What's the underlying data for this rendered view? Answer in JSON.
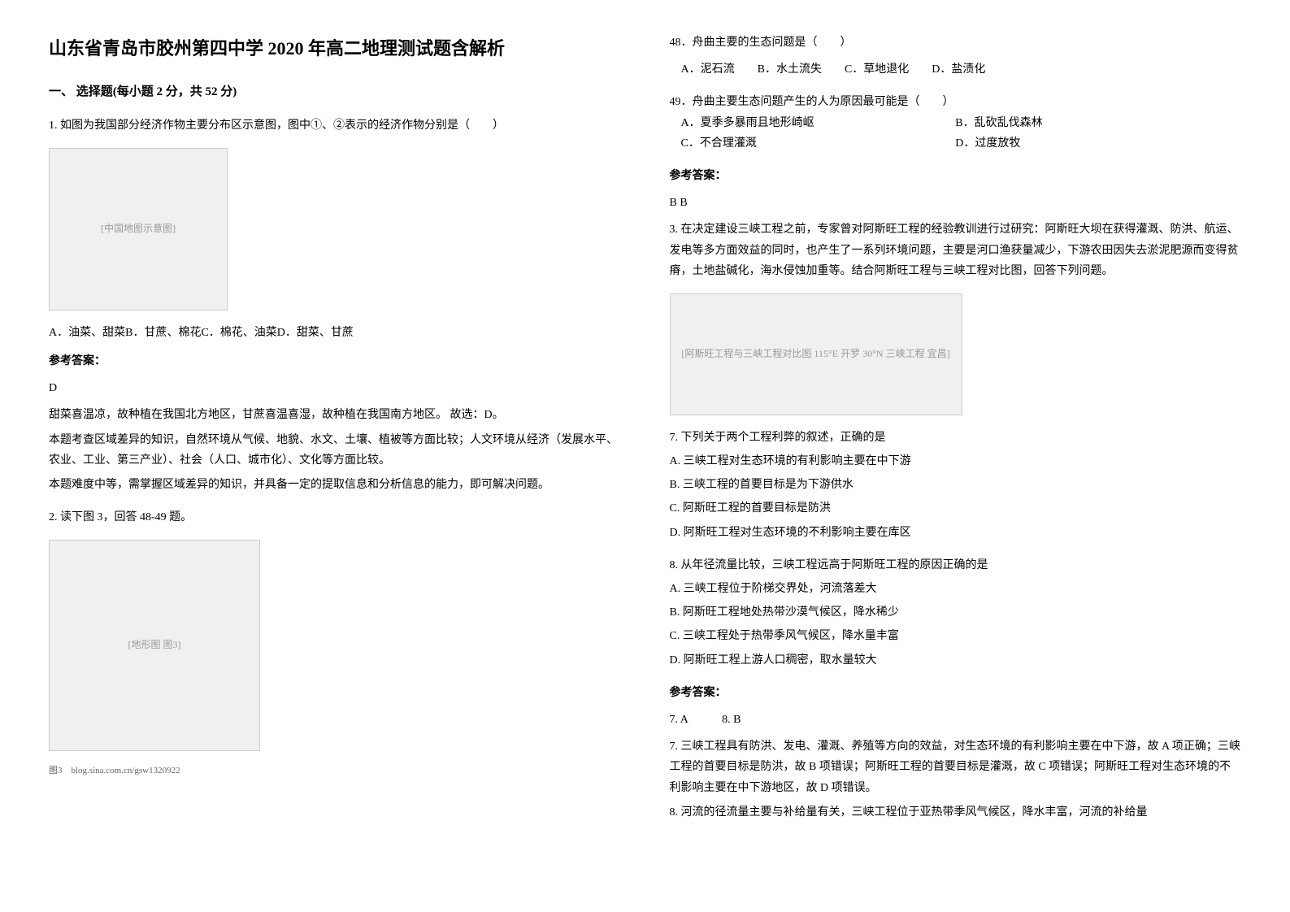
{
  "title": "山东省青岛市胶州第四中学 2020 年高二地理测试题含解析",
  "section1_header": "一、 选择题(每小题 2 分，共 52 分)",
  "left": {
    "q1": {
      "text": "1. 如图为我国部分经济作物主要分布区示意图，图中①、②表示的经济作物分别是（　　）",
      "image_label": "[中国地图示意图]",
      "options": "A．油菜、甜菜B．甘蔗、棉花C．棉花、油菜D．甜菜、甘蔗",
      "answer_label": "参考答案：",
      "answer": "D",
      "explain1": "甜菜喜温凉，故种植在我国北方地区，甘蔗喜温喜湿，故种植在我国南方地区。 故选：D。",
      "explain2": "本题考查区域差异的知识，自然环境从气候、地貌、水文、土壤、植被等方面比较；人文环境从经济（发展水平、农业、工业、第三产业）、社会（人口、城市化）、文化等方面比较。",
      "explain3": "本题难度中等，需掌握区域差异的知识，并具备一定的提取信息和分析信息的能力，即可解决问题。"
    },
    "q2": {
      "text": "2. 读下图 3，回答 48-49 题。",
      "image_label": "[地形图 图3]",
      "caption": "图3　blog.sina.com.cn/gsw1320922"
    }
  },
  "right": {
    "q48": {
      "text": "48．舟曲主要的生态问题是（　　）",
      "options": "　A．泥石流　　B．水土流失　　C．草地退化　　D．盐渍化"
    },
    "q49": {
      "text": "49．舟曲主要生态问题产生的人为原因最可能是（　　）",
      "optA": "　A．夏季多暴雨且地形崎岖",
      "optB": "B．乱砍乱伐森林",
      "optC": "　C．不合理灌溉",
      "optD": "D．过度放牧"
    },
    "answer_label": "参考答案：",
    "answer2": "B B",
    "q3": {
      "text": "3. 在决定建设三峡工程之前，专家曾对阿斯旺工程的经验教训进行过研究：阿斯旺大坝在获得灌溉、防洪、航运、发电等多方面效益的同时，也产生了一系列环境问题，主要是河口渔获量减少，下游农田因失去淤泥肥源而变得贫瘠，土地盐碱化，海水侵蚀加重等。结合阿斯旺工程与三峡工程对比图，回答下列问题。",
      "image_label": "[阿斯旺工程与三峡工程对比图 115°E 开罗 30°N 三峡工程 宜昌]"
    },
    "q7": {
      "text": "7. 下列关于两个工程利弊的叙述，正确的是",
      "optA": "A. 三峡工程对生态环境的有利影响主要在中下游",
      "optB": "B. 三峡工程的首要目标是为下游供水",
      "optC": "C. 阿斯旺工程的首要目标是防洪",
      "optD": "D. 阿斯旺工程对生态环境的不利影响主要在库区"
    },
    "q8": {
      "text": "8. 从年径流量比较，三峡工程远高于阿斯旺工程的原因正确的是",
      "optA": "A. 三峡工程位于阶梯交界处，河流落差大",
      "optB": "B. 阿斯旺工程地处热带沙漠气候区，降水稀少",
      "optC": "C. 三峡工程处于热带季风气候区，降水量丰富",
      "optD": "D. 阿斯旺工程上游人口稠密，取水量较大"
    },
    "answer_label2": "参考答案：",
    "answer78": "7. A　　　8. B",
    "explain7": "7. 三峡工程具有防洪、发电、灌溉、养殖等方向的效益，对生态环境的有利影响主要在中下游，故 A 项正确；三峡工程的首要目标是防洪，故 B 项错误；阿斯旺工程的首要目标是灌溉，故 C 项错误；阿斯旺工程对生态环境的不利影响主要在中下游地区，故 D 项错误。",
    "explain8": "8. 河流的径流量主要与补给量有关，三峡工程位于亚热带季风气候区，降水丰富，河流的补给量"
  }
}
